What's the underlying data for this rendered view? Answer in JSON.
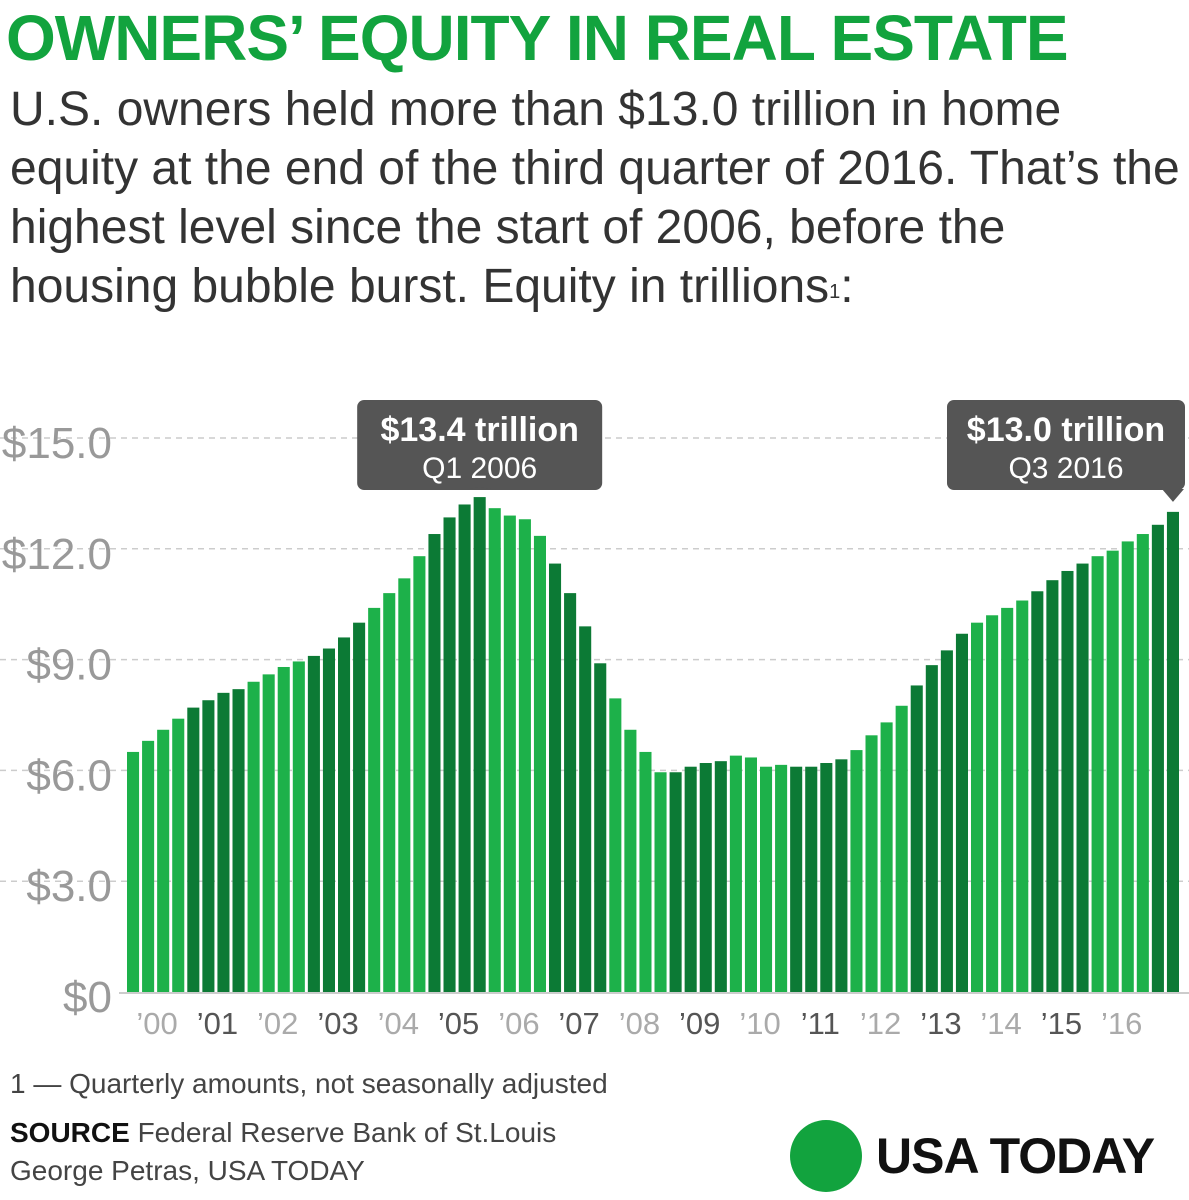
{
  "header": {
    "title": "OWNERS’ EQUITY IN REAL ESTATE",
    "subtitle": "U.S. owners held more than $13.0 trillion in home equity at the end of the third quarter of 2016. That’s the highest level since the start of 2006, before the housing bubble burst. Equity in trillions",
    "subtitle_sup": "1",
    "subtitle_end": ":"
  },
  "chart_data": {
    "type": "bar",
    "units": "trillions of dollars",
    "ylim": [
      0,
      15
    ],
    "yticks": [
      "$0",
      "$3.0",
      "$6.0",
      "$9.0",
      "$12.0",
      "$15.0"
    ],
    "ytick_values": [
      0,
      3,
      6,
      9,
      12,
      15
    ],
    "xtick_labels": [
      "’00",
      "’01",
      "’02",
      "’03",
      "’04",
      "’05",
      "’06",
      "’07",
      "’08",
      "’09",
      "’10",
      "’11",
      "’12",
      "’13",
      "’14",
      "’15",
      "’16"
    ],
    "grid": true,
    "colors": {
      "light": "#1db14a",
      "dark": "#0c7a35",
      "gridline": "#cccccc",
      "tick_text": "#999999",
      "callout": "#555555"
    },
    "values": [
      6.5,
      6.8,
      7.1,
      7.4,
      7.7,
      7.9,
      8.1,
      8.2,
      8.4,
      8.6,
      8.8,
      8.95,
      9.1,
      9.3,
      9.6,
      10.0,
      10.4,
      10.8,
      11.2,
      11.8,
      12.4,
      12.85,
      13.2,
      13.4,
      13.1,
      12.9,
      12.8,
      12.35,
      11.6,
      10.8,
      9.9,
      8.9,
      7.95,
      7.1,
      6.5,
      5.95,
      5.95,
      6.1,
      6.2,
      6.25,
      6.4,
      6.35,
      6.1,
      6.15,
      6.1,
      6.1,
      6.2,
      6.3,
      6.55,
      6.95,
      7.3,
      7.75,
      8.3,
      8.85,
      9.25,
      9.7,
      10.0,
      10.2,
      10.4,
      10.6,
      10.85,
      11.15,
      11.4,
      11.6,
      11.8,
      11.95,
      12.2,
      12.4,
      12.65,
      13.0
    ],
    "annotations": [
      {
        "value": "$13.4 trillion",
        "label": "Q1 2006",
        "index": 23
      },
      {
        "value": "$13.0 trillion",
        "label": "Q3 2016",
        "index": 69
      }
    ]
  },
  "footer": {
    "footnote": "1 — Quarterly amounts, not seasonally adjusted",
    "source_label": "SOURCE",
    "source_text": " Federal Reserve Bank of St.Louis",
    "credit": "George Petras, USA TODAY",
    "logo_text": "USA TODAY"
  }
}
